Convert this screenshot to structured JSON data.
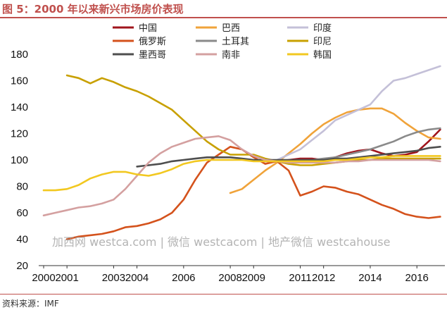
{
  "header": {
    "title": "图 5：2000 年以来新兴市场房价表现"
  },
  "footer": {
    "source": "资料来源：IMF"
  },
  "watermark": "加西网 westca.com | 微信 westcacom | 地产微信 westcahouse",
  "chart_data": {
    "type": "line",
    "title": "",
    "xlabel": "",
    "ylabel": "",
    "xlim": [
      2000,
      2017.2
    ],
    "ylim": [
      20,
      180
    ],
    "yticks": [
      20,
      40,
      60,
      80,
      100,
      120,
      140,
      160,
      180
    ],
    "xtick_values": [
      2000,
      2001,
      2003,
      2004,
      2006,
      2008,
      2009,
      2011,
      2012,
      2014,
      2016
    ],
    "xtick_labels": [
      "2000",
      "2001",
      "2003",
      "2004",
      "2006",
      "2008",
      "2009",
      "2011",
      "2012",
      "2014",
      "2016"
    ],
    "grid": false,
    "legend_position": "top",
    "series": [
      {
        "name": "中国",
        "color": "#a0141c",
        "points": [
          [
            2009.5,
            99
          ],
          [
            2010,
            99
          ],
          [
            2010.5,
            100
          ],
          [
            2011,
            101
          ],
          [
            2011.5,
            101
          ],
          [
            2012,
            100
          ],
          [
            2012.5,
            102
          ],
          [
            2013,
            105
          ],
          [
            2013.5,
            107
          ],
          [
            2014,
            108
          ],
          [
            2014.5,
            105
          ],
          [
            2015,
            103
          ],
          [
            2015.5,
            104
          ],
          [
            2016,
            106
          ],
          [
            2016.5,
            114
          ],
          [
            2017,
            123
          ]
        ]
      },
      {
        "name": "巴西",
        "color": "#f0a33a",
        "points": [
          [
            2008,
            75
          ],
          [
            2008.5,
            78
          ],
          [
            2009,
            85
          ],
          [
            2009.5,
            92
          ],
          [
            2010,
            98
          ],
          [
            2010.5,
            105
          ],
          [
            2011,
            112
          ],
          [
            2011.5,
            120
          ],
          [
            2012,
            127
          ],
          [
            2012.5,
            132
          ],
          [
            2013,
            136
          ],
          [
            2013.5,
            138
          ],
          [
            2014,
            139
          ],
          [
            2014.5,
            139
          ],
          [
            2015,
            135
          ],
          [
            2015.5,
            128
          ],
          [
            2016,
            122
          ],
          [
            2016.5,
            117
          ],
          [
            2017,
            116
          ]
        ]
      },
      {
        "name": "印度",
        "color": "#c4c0d8",
        "points": [
          [
            2010,
            100
          ],
          [
            2010.5,
            104
          ],
          [
            2011,
            108
          ],
          [
            2011.5,
            115
          ],
          [
            2012,
            122
          ],
          [
            2012.5,
            130
          ],
          [
            2013,
            134
          ],
          [
            2013.5,
            138
          ],
          [
            2014,
            142
          ],
          [
            2014.5,
            152
          ],
          [
            2015,
            160
          ],
          [
            2015.5,
            162
          ],
          [
            2016,
            165
          ],
          [
            2016.5,
            168
          ],
          [
            2017,
            171
          ]
        ]
      },
      {
        "name": "俄罗斯",
        "color": "#d4521c",
        "points": [
          [
            2001,
            40
          ],
          [
            2001.5,
            42
          ],
          [
            2002,
            43
          ],
          [
            2002.5,
            44
          ],
          [
            2003,
            46
          ],
          [
            2003.5,
            49
          ],
          [
            2004,
            50
          ],
          [
            2004.5,
            52
          ],
          [
            2005,
            55
          ],
          [
            2005.5,
            60
          ],
          [
            2006,
            70
          ],
          [
            2006.5,
            85
          ],
          [
            2007,
            98
          ],
          [
            2007.5,
            104
          ],
          [
            2008,
            110
          ],
          [
            2008.5,
            108
          ],
          [
            2009,
            102
          ],
          [
            2009.5,
            97
          ],
          [
            2010,
            99
          ],
          [
            2010.5,
            92
          ],
          [
            2011,
            73
          ],
          [
            2011.5,
            76
          ],
          [
            2012,
            80
          ],
          [
            2012.5,
            79
          ],
          [
            2013,
            76
          ],
          [
            2013.5,
            74
          ],
          [
            2014,
            70
          ],
          [
            2014.5,
            66
          ],
          [
            2015,
            63
          ],
          [
            2015.5,
            59
          ],
          [
            2016,
            57
          ],
          [
            2016.5,
            56
          ],
          [
            2017,
            57
          ]
        ]
      },
      {
        "name": "土耳其",
        "color": "#8a8a8a",
        "points": [
          [
            2010,
            99
          ],
          [
            2010.5,
            99
          ],
          [
            2011,
            100
          ],
          [
            2011.5,
            100
          ],
          [
            2012,
            101
          ],
          [
            2012.5,
            102
          ],
          [
            2013,
            104
          ],
          [
            2013.5,
            106
          ],
          [
            2014,
            108
          ],
          [
            2014.5,
            111
          ],
          [
            2015,
            114
          ],
          [
            2015.5,
            118
          ],
          [
            2016,
            121
          ],
          [
            2016.5,
            123
          ],
          [
            2017,
            124
          ]
        ]
      },
      {
        "name": "印尼",
        "color": "#c8a000",
        "points": [
          [
            2001,
            164
          ],
          [
            2001.5,
            162
          ],
          [
            2002,
            158
          ],
          [
            2002.5,
            162
          ],
          [
            2003,
            159
          ],
          [
            2003.5,
            155
          ],
          [
            2004,
            152
          ],
          [
            2004.5,
            148
          ],
          [
            2005,
            143
          ],
          [
            2005.5,
            138
          ],
          [
            2006,
            130
          ],
          [
            2006.5,
            122
          ],
          [
            2007,
            114
          ],
          [
            2007.5,
            108
          ],
          [
            2008,
            104
          ],
          [
            2008.5,
            104
          ],
          [
            2009,
            104
          ],
          [
            2009.5,
            101
          ],
          [
            2010,
            99
          ],
          [
            2010.5,
            97
          ],
          [
            2011,
            96
          ],
          [
            2011.5,
            96
          ],
          [
            2012,
            97
          ],
          [
            2012.5,
            98
          ],
          [
            2013,
            99
          ],
          [
            2013.5,
            100
          ],
          [
            2014,
            100
          ],
          [
            2014.5,
            101
          ],
          [
            2015,
            101
          ],
          [
            2015.5,
            101
          ],
          [
            2016,
            101
          ],
          [
            2016.5,
            101
          ],
          [
            2017,
            101
          ]
        ]
      },
      {
        "name": "墨西哥",
        "color": "#4e4e4e",
        "points": [
          [
            2004,
            95
          ],
          [
            2004.5,
            96
          ],
          [
            2005,
            97
          ],
          [
            2005.5,
            99
          ],
          [
            2006,
            100
          ],
          [
            2006.5,
            101
          ],
          [
            2007,
            102
          ],
          [
            2007.5,
            102
          ],
          [
            2008,
            102
          ],
          [
            2008.5,
            101
          ],
          [
            2009,
            100
          ],
          [
            2009.5,
            100
          ],
          [
            2010,
            100
          ],
          [
            2010.5,
            100
          ],
          [
            2011,
            100
          ],
          [
            2011.5,
            100
          ],
          [
            2012,
            100
          ],
          [
            2012.5,
            101
          ],
          [
            2013,
            101
          ],
          [
            2013.5,
            102
          ],
          [
            2014,
            103
          ],
          [
            2014.5,
            104
          ],
          [
            2015,
            105
          ],
          [
            2015.5,
            106
          ],
          [
            2016,
            107
          ],
          [
            2016.5,
            109
          ],
          [
            2017,
            110
          ]
        ]
      },
      {
        "name": "南非",
        "color": "#d4a0a0",
        "points": [
          [
            2000,
            58
          ],
          [
            2000.5,
            60
          ],
          [
            2001,
            62
          ],
          [
            2001.5,
            64
          ],
          [
            2002,
            65
          ],
          [
            2002.5,
            67
          ],
          [
            2003,
            70
          ],
          [
            2003.5,
            78
          ],
          [
            2004,
            88
          ],
          [
            2004.5,
            98
          ],
          [
            2005,
            105
          ],
          [
            2005.5,
            110
          ],
          [
            2006,
            113
          ],
          [
            2006.5,
            116
          ],
          [
            2007,
            117
          ],
          [
            2007.5,
            118
          ],
          [
            2008,
            115
          ],
          [
            2008.5,
            108
          ],
          [
            2009,
            103
          ],
          [
            2009.5,
            100
          ],
          [
            2010,
            99
          ],
          [
            2010.5,
            98
          ],
          [
            2011,
            98
          ],
          [
            2011.5,
            98
          ],
          [
            2012,
            98
          ],
          [
            2012.5,
            98
          ],
          [
            2013,
            99
          ],
          [
            2013.5,
            99
          ],
          [
            2014,
            100
          ],
          [
            2014.5,
            100
          ],
          [
            2015,
            100
          ],
          [
            2015.5,
            100
          ],
          [
            2016,
            100
          ],
          [
            2016.5,
            100
          ],
          [
            2017,
            99
          ]
        ]
      },
      {
        "name": "韩国",
        "color": "#f2c820",
        "points": [
          [
            2000,
            77
          ],
          [
            2000.5,
            77
          ],
          [
            2001,
            78
          ],
          [
            2001.5,
            81
          ],
          [
            2002,
            86
          ],
          [
            2002.5,
            89
          ],
          [
            2003,
            91
          ],
          [
            2003.5,
            91
          ],
          [
            2004,
            89
          ],
          [
            2004.5,
            88
          ],
          [
            2005,
            90
          ],
          [
            2005.5,
            93
          ],
          [
            2006,
            97
          ],
          [
            2006.5,
            99
          ],
          [
            2007,
            100
          ],
          [
            2007.5,
            100
          ],
          [
            2008,
            100
          ],
          [
            2008.5,
            100
          ],
          [
            2009,
            99
          ],
          [
            2009.5,
            99
          ],
          [
            2010,
            99
          ],
          [
            2010.5,
            99
          ],
          [
            2011,
            99
          ],
          [
            2011.5,
            99
          ],
          [
            2012,
            99
          ],
          [
            2012.5,
            100
          ],
          [
            2013,
            100
          ],
          [
            2013.5,
            101
          ],
          [
            2014,
            102
          ],
          [
            2014.5,
            102
          ],
          [
            2015,
            103
          ],
          [
            2015.5,
            103
          ],
          [
            2016,
            103
          ],
          [
            2016.5,
            103
          ],
          [
            2017,
            103
          ]
        ]
      }
    ]
  }
}
